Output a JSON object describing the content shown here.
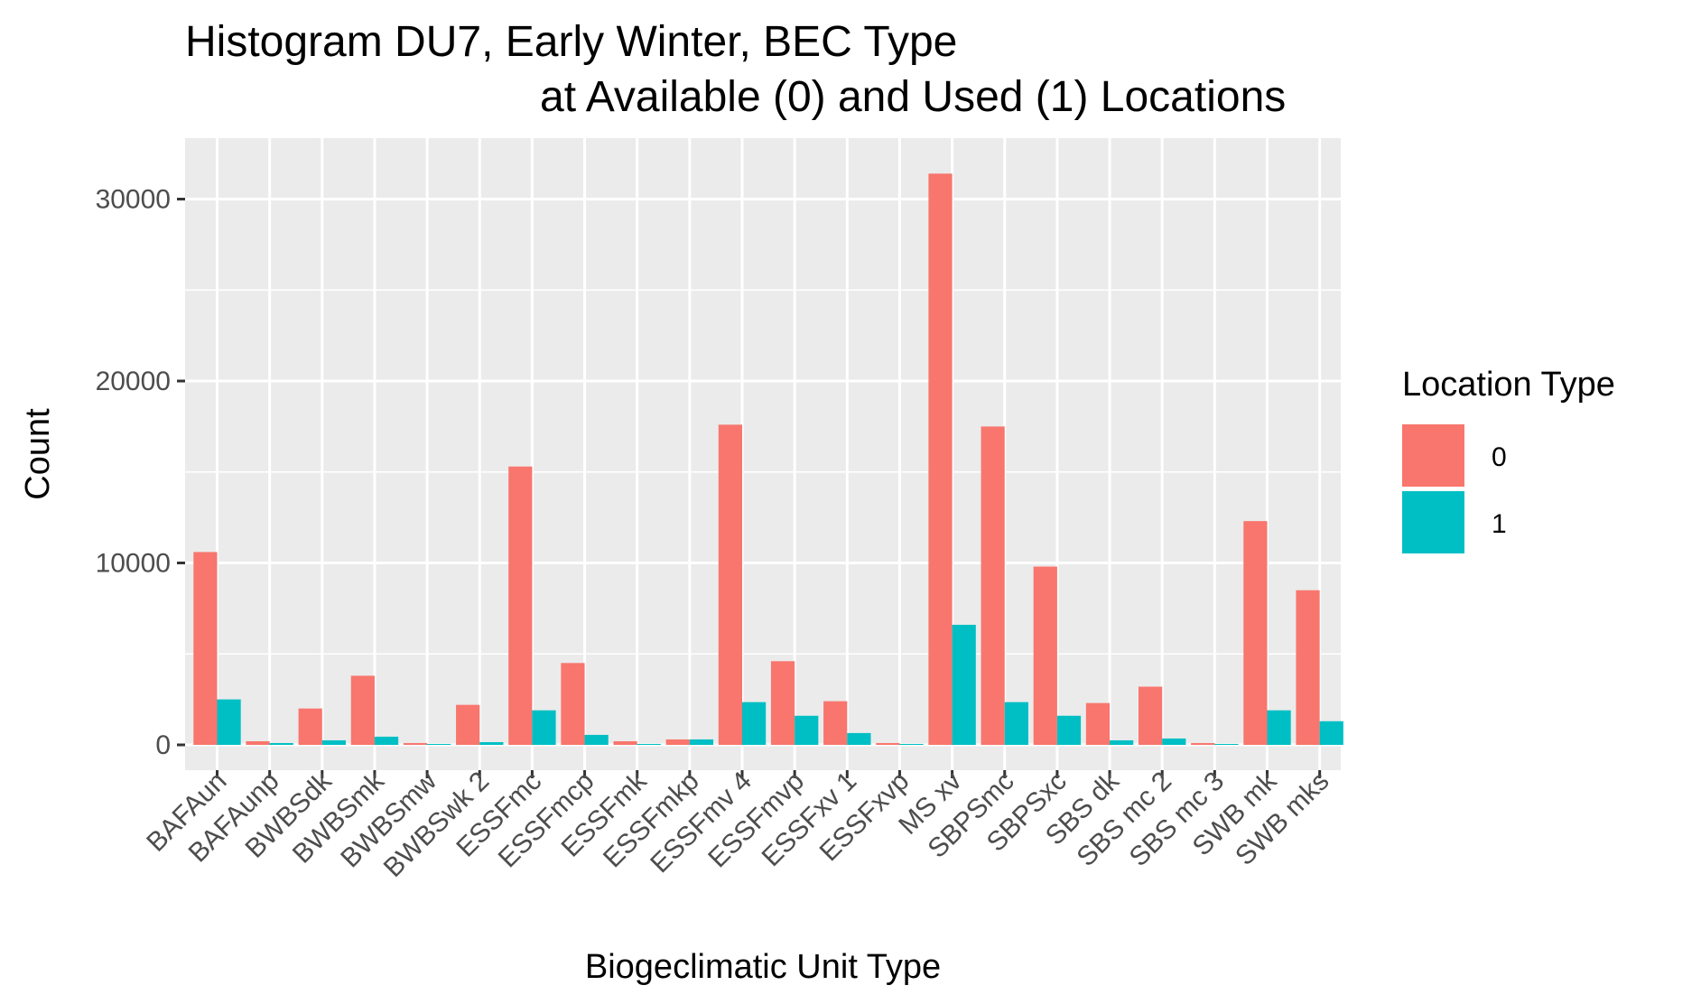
{
  "chart_data": {
    "type": "bar",
    "title": "Histogram DU7, Early Winter, BEC Type",
    "subtitle": "at Available (0) and Used (1) Locations",
    "xlabel": "Biogeclimatic Unit Type",
    "ylabel": "Count",
    "ylim": [
      0,
      33000
    ],
    "yticks": [
      0,
      10000,
      20000,
      30000
    ],
    "ytick_labels": [
      "0",
      "10000",
      "20000",
      "30000"
    ],
    "grid": true,
    "legend": {
      "title": "Location Type",
      "position": "right"
    },
    "categories": [
      "BAFAun",
      "BAFAunp",
      "BWBSdk",
      "BWBSmk",
      "BWBSmw",
      "BWBSwk 2",
      "ESSFmc",
      "ESSFmcp",
      "ESSFmk",
      "ESSFmkp",
      "ESSFmv 4",
      "ESSFmvp",
      "ESSFxv 1",
      "ESSFxvp",
      "MS  xv",
      "SBPSmc",
      "SBPSxc",
      "SBS dk",
      "SBS mc 2",
      "SBS mc 3",
      "SWB mk",
      "SWB mks"
    ],
    "series": [
      {
        "name": "0",
        "color": "#F8766D",
        "values": [
          10600,
          200,
          2000,
          3800,
          100,
          2200,
          15300,
          4500,
          200,
          300,
          17600,
          4600,
          2400,
          100,
          31400,
          17500,
          9800,
          2300,
          3200,
          100,
          12300,
          8500
        ]
      },
      {
        "name": "1",
        "color": "#00BFC4",
        "values": [
          2500,
          100,
          250,
          450,
          50,
          150,
          1900,
          550,
          50,
          300,
          2350,
          1600,
          650,
          50,
          6600,
          2350,
          1600,
          250,
          350,
          50,
          1900,
          1300
        ]
      }
    ]
  }
}
